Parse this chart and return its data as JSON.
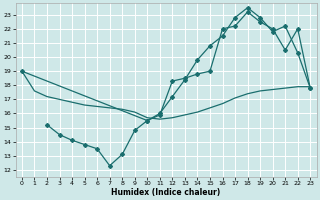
{
  "xlabel": "Humidex (Indice chaleur)",
  "bg_color": "#cfe8e8",
  "grid_color": "#ffffff",
  "line_color": "#1a6e6e",
  "xlim": [
    -0.5,
    23.5
  ],
  "ylim": [
    11.5,
    23.8
  ],
  "yticks": [
    12,
    13,
    14,
    15,
    16,
    17,
    18,
    19,
    20,
    21,
    22,
    23
  ],
  "xticks": [
    0,
    1,
    2,
    3,
    4,
    5,
    6,
    7,
    8,
    9,
    10,
    11,
    12,
    13,
    14,
    15,
    16,
    17,
    18,
    19,
    20,
    21,
    22,
    23
  ],
  "line1_x": [
    0,
    1,
    2,
    3,
    4,
    5,
    6,
    7,
    8,
    9,
    10,
    11,
    12,
    13,
    14,
    15,
    16,
    17,
    18,
    19,
    20,
    21,
    22,
    23
  ],
  "line1_y": [
    19,
    17.6,
    17.2,
    17.0,
    16.8,
    16.6,
    16.5,
    16.4,
    16.3,
    16.1,
    15.7,
    15.6,
    15.7,
    15.9,
    16.1,
    16.4,
    16.7,
    17.1,
    17.4,
    17.6,
    17.7,
    17.8,
    17.9,
    17.9
  ],
  "line2_x": [
    2,
    3,
    4,
    5,
    6,
    7,
    8,
    9,
    10,
    11,
    12,
    13,
    14,
    15,
    16,
    17,
    18,
    19,
    20,
    21,
    22,
    23
  ],
  "line2_y": [
    15.2,
    14.5,
    14.1,
    13.8,
    13.5,
    12.3,
    13.1,
    14.8,
    15.5,
    15.9,
    18.3,
    18.5,
    18.8,
    19.0,
    22.0,
    22.2,
    23.2,
    22.5,
    22.0,
    20.5,
    22.0,
    17.8
  ],
  "line3_x": [
    0,
    10,
    11,
    12,
    13,
    14,
    15,
    16,
    17,
    18,
    19,
    20,
    21,
    22,
    23
  ],
  "line3_y": [
    19,
    15.5,
    16.0,
    17.2,
    18.4,
    19.8,
    20.8,
    21.5,
    22.8,
    23.5,
    22.8,
    21.8,
    22.2,
    20.3,
    17.8
  ]
}
